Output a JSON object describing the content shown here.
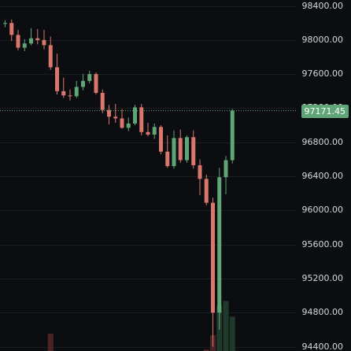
{
  "chart_data": {
    "type": "candlestick",
    "yaxis_ticks": [
      "98400.00",
      "98000.00",
      "97600.00",
      "97200.00",
      "96800.00",
      "96400.00",
      "96000.00",
      "95600.00",
      "95200.00",
      "94800.00",
      "94400.00"
    ],
    "ylim": [
      94350,
      98470
    ],
    "current_price": 97171.45,
    "current_price_label": "97171.45",
    "up_color": "#5fa577",
    "down_color": "#d9776c",
    "grid": true,
    "candles": [
      {
        "o": 98190,
        "h": 98230,
        "l": 98150,
        "c": 98200
      },
      {
        "o": 98200,
        "h": 98240,
        "l": 97990,
        "c": 98060
      },
      {
        "o": 98060,
        "h": 98120,
        "l": 97880,
        "c": 97910
      },
      {
        "o": 97910,
        "h": 98010,
        "l": 97870,
        "c": 97960
      },
      {
        "o": 97960,
        "h": 98140,
        "l": 97940,
        "c": 98020
      },
      {
        "o": 98020,
        "h": 98130,
        "l": 97950,
        "c": 98000
      },
      {
        "o": 98000,
        "h": 98120,
        "l": 97890,
        "c": 97940
      },
      {
        "o": 97940,
        "h": 98040,
        "l": 97650,
        "c": 97680
      },
      {
        "o": 97680,
        "h": 97840,
        "l": 97360,
        "c": 97400
      },
      {
        "o": 97400,
        "h": 97560,
        "l": 97320,
        "c": 97350
      },
      {
        "o": 97350,
        "h": 97420,
        "l": 97290,
        "c": 97340
      },
      {
        "o": 97340,
        "h": 97520,
        "l": 97320,
        "c": 97450
      },
      {
        "o": 97450,
        "h": 97600,
        "l": 97410,
        "c": 97520
      },
      {
        "o": 97520,
        "h": 97640,
        "l": 97490,
        "c": 97600
      },
      {
        "o": 97600,
        "h": 97620,
        "l": 97360,
        "c": 97380
      },
      {
        "o": 97380,
        "h": 97420,
        "l": 97140,
        "c": 97180
      },
      {
        "o": 97180,
        "h": 97240,
        "l": 97010,
        "c": 97100
      },
      {
        "o": 97100,
        "h": 97250,
        "l": 97030,
        "c": 97080
      },
      {
        "o": 97080,
        "h": 97190,
        "l": 96960,
        "c": 96970
      },
      {
        "o": 96970,
        "h": 97090,
        "l": 96930,
        "c": 97020
      },
      {
        "o": 97020,
        "h": 97240,
        "l": 97000,
        "c": 97210
      },
      {
        "o": 97210,
        "h": 97250,
        "l": 96880,
        "c": 96920
      },
      {
        "o": 96920,
        "h": 97030,
        "l": 96870,
        "c": 96890
      },
      {
        "o": 96890,
        "h": 97020,
        "l": 96840,
        "c": 96980
      },
      {
        "o": 96980,
        "h": 97000,
        "l": 96660,
        "c": 96690
      },
      {
        "o": 96690,
        "h": 96880,
        "l": 96500,
        "c": 96520
      },
      {
        "o": 96520,
        "h": 96940,
        "l": 96490,
        "c": 96850
      },
      {
        "o": 96850,
        "h": 96950,
        "l": 96560,
        "c": 96590
      },
      {
        "o": 96590,
        "h": 96880,
        "l": 96560,
        "c": 96860
      },
      {
        "o": 96860,
        "h": 96940,
        "l": 96490,
        "c": 96530
      },
      {
        "o": 96530,
        "h": 96600,
        "l": 96180,
        "c": 96370
      },
      {
        "o": 96370,
        "h": 96420,
        "l": 96060,
        "c": 96090
      },
      {
        "o": 96090,
        "h": 96150,
        "l": 94400,
        "c": 94800
      },
      {
        "o": 94800,
        "h": 96500,
        "l": 94600,
        "c": 96390
      },
      {
        "o": 96390,
        "h": 96640,
        "l": 96190,
        "c": 96590
      },
      {
        "o": 96590,
        "h": 97190,
        "l": 96550,
        "c": 97171.45
      }
    ],
    "volume": [
      0,
      0,
      0,
      0,
      0,
      0,
      0,
      24,
      0,
      0,
      0,
      0,
      0,
      0,
      0,
      0,
      0,
      0,
      0,
      0,
      0,
      0,
      0,
      0,
      0,
      0,
      0,
      0,
      0,
      0,
      0,
      2,
      22,
      63,
      70,
      48
    ]
  }
}
